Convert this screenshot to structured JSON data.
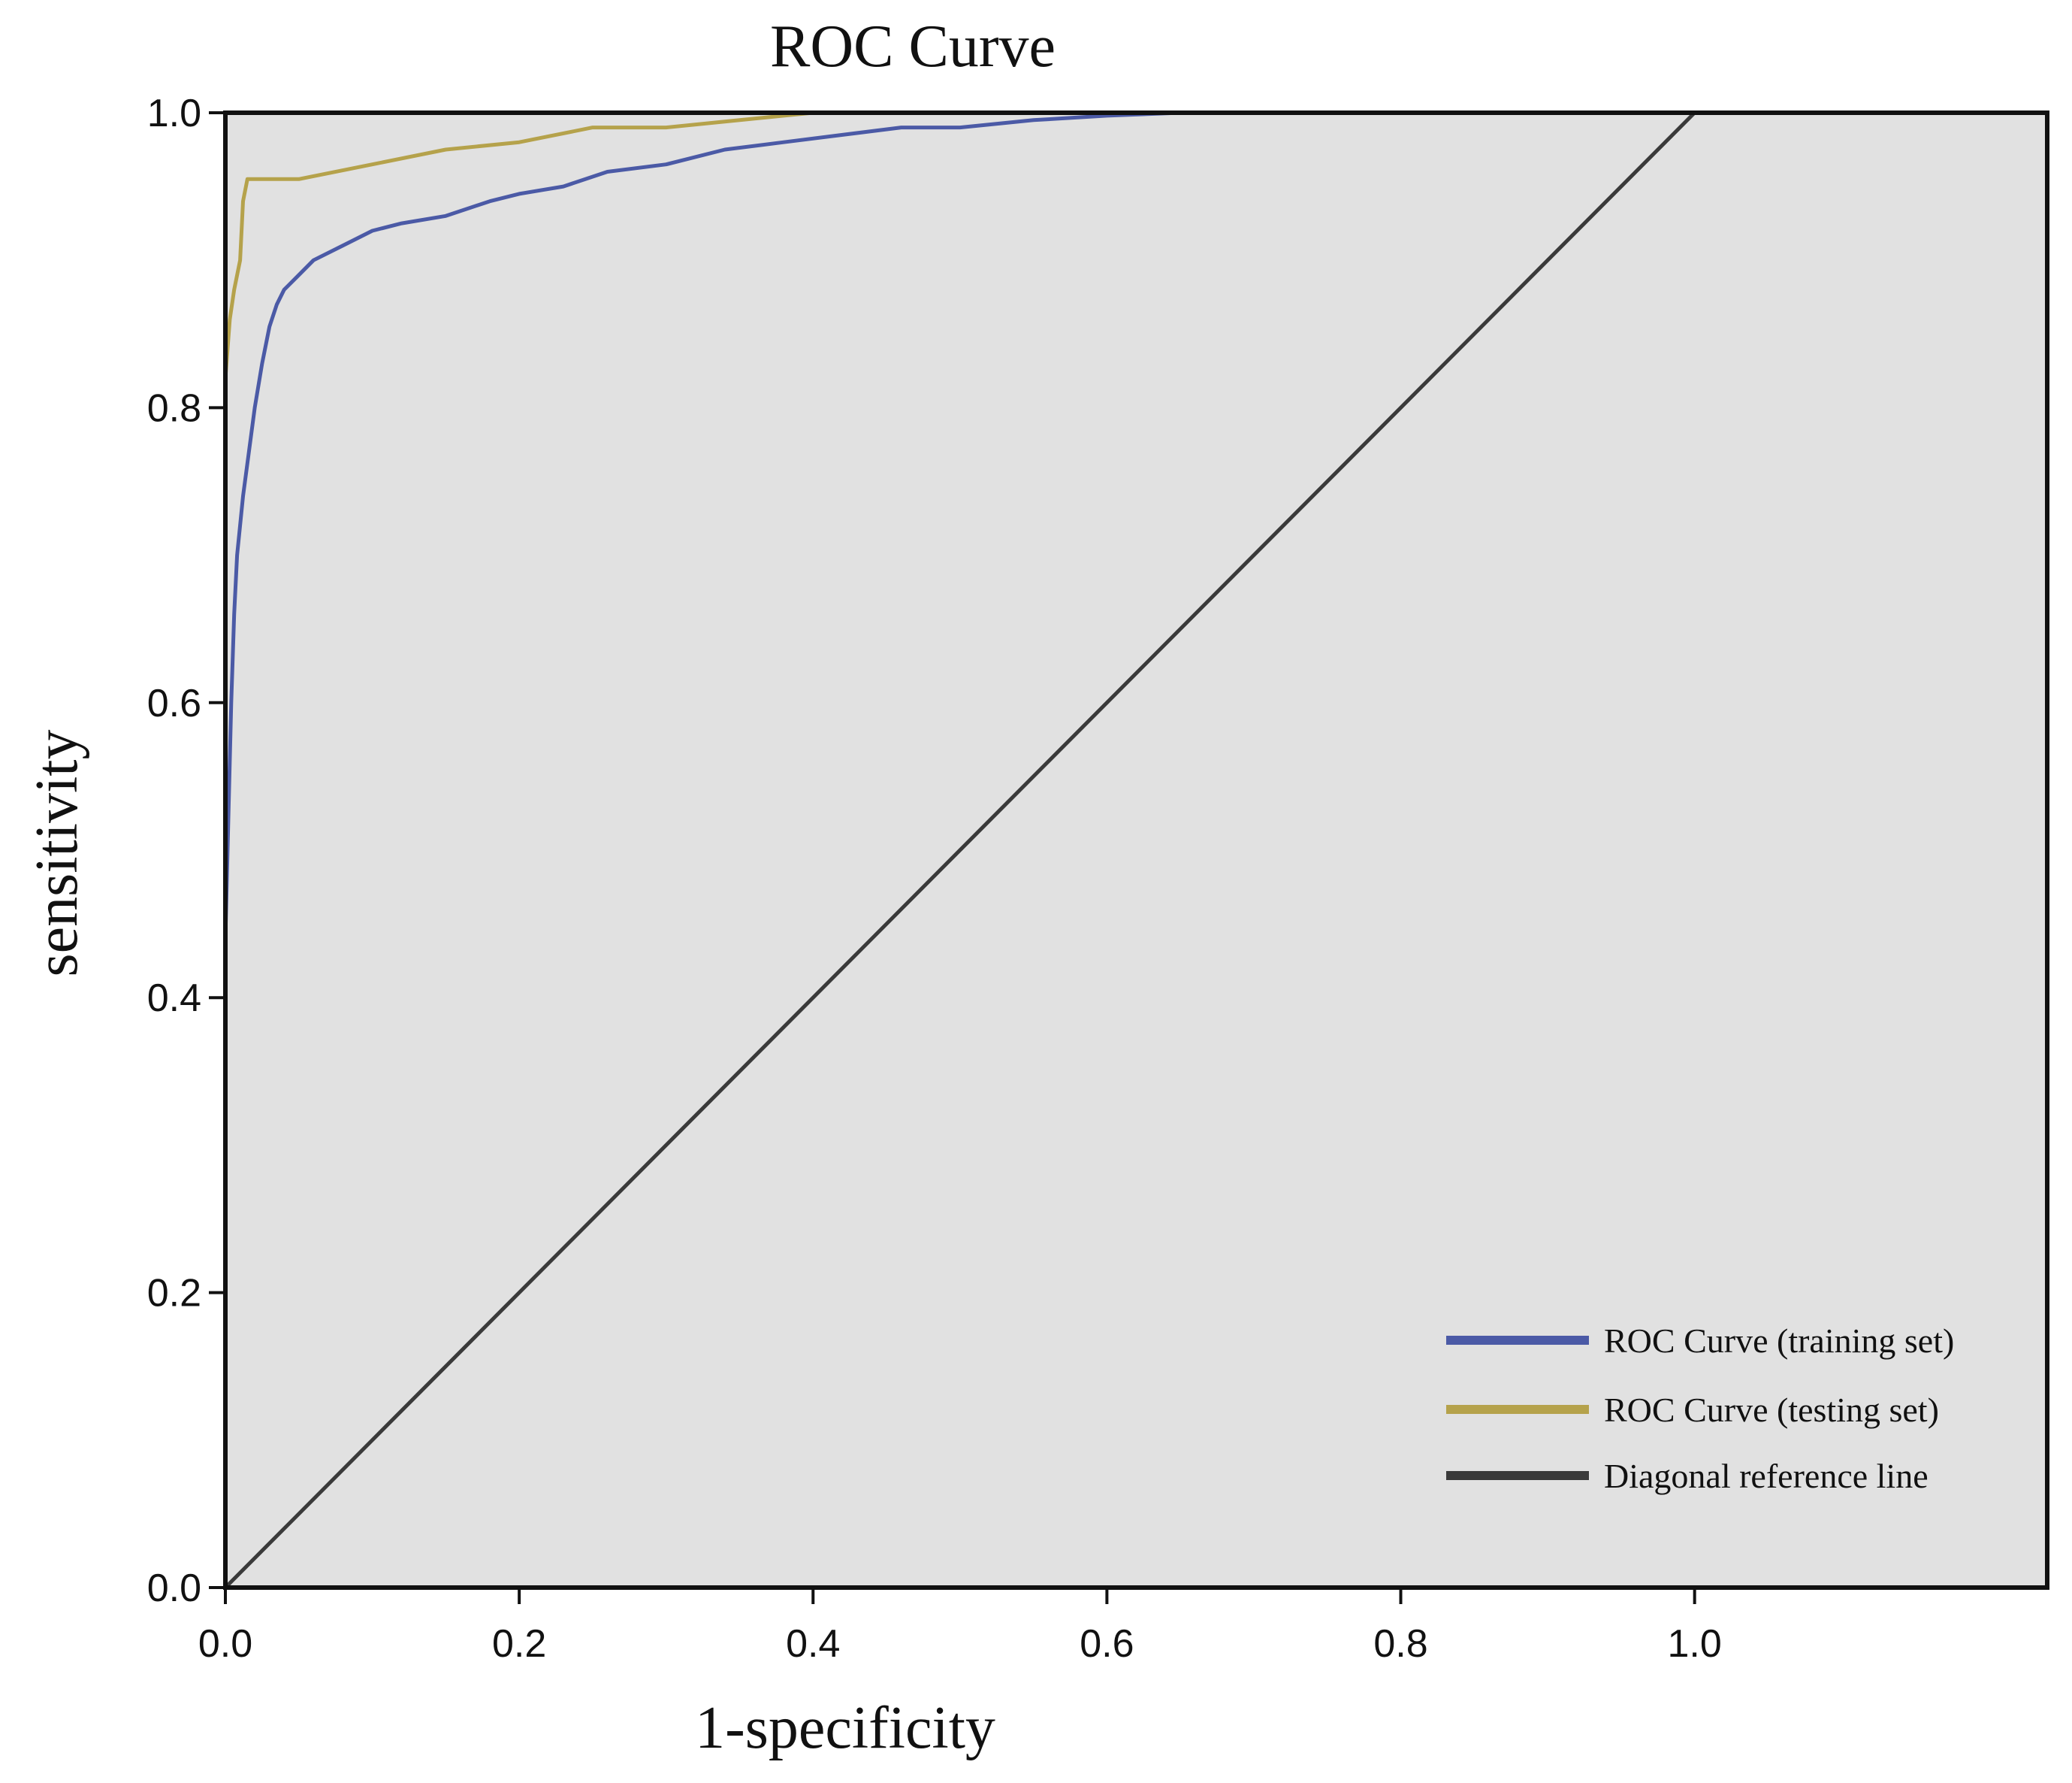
{
  "chart_data": {
    "type": "line",
    "title": "ROC Curve",
    "xlabel": "1-specificity",
    "ylabel": "sensitivity",
    "xlim": [
      0,
      1.24
    ],
    "ylim": [
      0,
      1.0
    ],
    "x_ticks": [
      "0.0",
      "0.2",
      "0.4",
      "0.6",
      "0.8",
      "1.0"
    ],
    "y_ticks": [
      "0.0",
      "0.2",
      "0.4",
      "0.6",
      "0.8",
      "1.0"
    ],
    "grid": false,
    "legend_position": "bottom-right",
    "background_color": "#e1e1e1",
    "series": [
      {
        "name": "ROC Curve (training set)",
        "color": "#4b5aa6",
        "x": [
          0,
          0,
          0.002,
          0.004,
          0.006,
          0.008,
          0.012,
          0.016,
          0.02,
          0.025,
          0.03,
          0.035,
          0.04,
          0.05,
          0.06,
          0.08,
          0.1,
          0.12,
          0.15,
          0.18,
          0.2,
          0.23,
          0.26,
          0.3,
          0.34,
          0.38,
          0.42,
          0.46,
          0.5,
          0.55,
          0.6,
          0.65,
          1.0
        ],
        "y": [
          0,
          0.44,
          0.52,
          0.6,
          0.66,
          0.7,
          0.74,
          0.77,
          0.8,
          0.83,
          0.855,
          0.87,
          0.88,
          0.89,
          0.9,
          0.91,
          0.92,
          0.925,
          0.93,
          0.94,
          0.945,
          0.95,
          0.96,
          0.965,
          0.975,
          0.98,
          0.985,
          0.99,
          0.99,
          0.995,
          0.998,
          1.0,
          1.0
        ]
      },
      {
        "name": "ROC Curve (testing set)",
        "color": "#b5a24b",
        "x": [
          0,
          0,
          0.003,
          0.006,
          0.01,
          0.012,
          0.015,
          0.05,
          0.1,
          0.15,
          0.2,
          0.25,
          0.3,
          0.35,
          0.38,
          0.4,
          0.5,
          0.6,
          1.0
        ],
        "y": [
          0,
          0.82,
          0.86,
          0.88,
          0.9,
          0.94,
          0.955,
          0.955,
          0.965,
          0.975,
          0.98,
          0.99,
          0.99,
          0.995,
          0.998,
          1.0,
          1.0,
          1.0,
          1.0
        ]
      },
      {
        "name": "Diagonal reference line",
        "color": "#3a3a3a",
        "x": [
          0,
          1.0
        ],
        "y": [
          0,
          1.0
        ]
      }
    ]
  }
}
